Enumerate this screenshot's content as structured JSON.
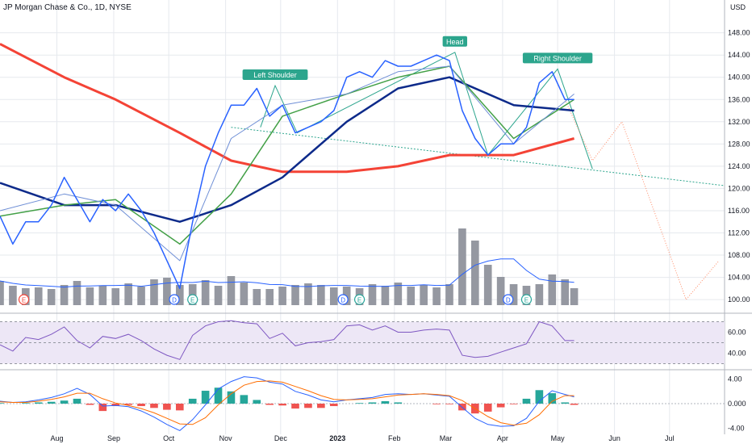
{
  "header": {
    "title": "JP Morgan Chase & Co., 1D, NYSE",
    "currency": "USD"
  },
  "colors": {
    "price": "#2962ff",
    "ma_fast": "#6f8fd6",
    "ma_mid": "#43a047",
    "ma_slow": "#0d2a8a",
    "ma_long": "#f44336",
    "volume": "#9598a1",
    "volume_avg": "#2962ff",
    "pattern_fill": "#2ca58d",
    "pattern_neckline": "#2ca58d",
    "projection": "#ff8a65",
    "rsi": "#7e57c2",
    "rsi_band": "#ede7f6",
    "macd": "#2962ff",
    "signal": "#ff6d00",
    "hist_pos": "#26a69a",
    "hist_neg": "#ef5350",
    "grid": "#e6e9ee"
  },
  "chart_data": [
    {
      "type": "line",
      "title": "JP Morgan Chase & Co., 1D, NYSE",
      "x_tick_labels": [
        "Aug",
        "Sep",
        "Oct",
        "Nov",
        "Dec",
        "2023",
        "Feb",
        "Mar",
        "Apr",
        "May",
        "Jun",
        "Jul"
      ],
      "y_tick_labels": [
        "148.00",
        "144.00",
        "140.00",
        "136.00",
        "132.00",
        "128.00",
        "124.00",
        "120.00",
        "116.00",
        "112.00",
        "108.00",
        "104.00",
        "100.00"
      ],
      "ylim": [
        99,
        151
      ],
      "annotations": [
        {
          "label": "Left Shoulder",
          "x": "2022-11-28",
          "y": 138.5
        },
        {
          "label": "Head",
          "x": "2023-03-06",
          "y": 144.5
        },
        {
          "label": "Right Shoulder",
          "x": "2023-05-01",
          "y": 141.5
        }
      ],
      "event_markers": [
        {
          "label": "E",
          "x": "2022-07-14"
        },
        {
          "label": "D",
          "x": "2022-10-04"
        },
        {
          "label": "E",
          "x": "2022-10-14"
        },
        {
          "label": "D",
          "x": "2023-01-04"
        },
        {
          "label": "E",
          "x": "2023-01-13"
        },
        {
          "label": "D",
          "x": "2023-04-04"
        },
        {
          "label": "E",
          "x": "2023-04-14"
        }
      ],
      "series": [
        {
          "x": [
            "2022-07-01",
            "2022-07-08",
            "2022-07-15",
            "2022-07-22",
            "2022-07-29",
            "2022-08-05",
            "2022-08-12",
            "2022-08-19",
            "2022-08-26",
            "2022-09-02",
            "2022-09-09",
            "2022-09-16",
            "2022-09-23",
            "2022-09-30",
            "2022-10-07",
            "2022-10-14",
            "2022-10-21",
            "2022-10-28",
            "2022-11-04",
            "2022-11-11",
            "2022-11-18",
            "2022-11-25",
            "2022-12-02",
            "2022-12-09",
            "2022-12-16",
            "2022-12-23",
            "2022-12-30",
            "2023-01-06",
            "2023-01-13",
            "2023-01-20",
            "2023-01-27",
            "2023-02-03",
            "2023-02-10",
            "2023-02-17",
            "2023-02-24",
            "2023-03-03",
            "2023-03-10",
            "2023-03-17",
            "2023-03-24",
            "2023-03-31",
            "2023-04-07",
            "2023-04-14",
            "2023-04-21",
            "2023-04-28",
            "2023-05-05",
            "2023-05-10"
          ],
          "values": [
            115,
            110,
            114,
            114,
            117,
            122,
            118,
            114,
            118,
            116,
            119,
            116,
            112,
            107,
            102,
            114,
            124,
            130,
            135,
            135,
            138,
            133,
            135,
            130,
            131,
            132,
            134,
            140,
            141,
            140,
            143,
            142,
            142,
            143,
            144,
            143,
            134,
            129,
            126,
            128,
            128,
            131,
            139,
            141,
            136,
            136
          ]
        },
        {
          "x": [
            "2022-07-01",
            "2022-08-05",
            "2022-09-02",
            "2022-10-07",
            "2022-11-04",
            "2022-12-02",
            "2023-01-06",
            "2023-02-03",
            "2023-03-03",
            "2023-04-07",
            "2023-05-10"
          ],
          "values": [
            116,
            119,
            117,
            107,
            129,
            135,
            137,
            141,
            142,
            128,
            137
          ]
        },
        {
          "x": [
            "2022-07-01",
            "2022-08-05",
            "2022-09-02",
            "2022-10-07",
            "2022-11-04",
            "2022-12-02",
            "2023-01-06",
            "2023-02-03",
            "2023-03-03",
            "2023-04-07",
            "2023-05-10"
          ],
          "values": [
            115,
            117,
            118,
            110,
            119,
            133,
            137,
            140,
            142,
            129,
            136
          ]
        },
        {
          "x": [
            "2022-07-01",
            "2022-08-05",
            "2022-09-02",
            "2022-10-07",
            "2022-11-04",
            "2022-12-02",
            "2023-01-06",
            "2023-02-03",
            "2023-03-03",
            "2023-04-07",
            "2023-05-10"
          ],
          "values": [
            121,
            117,
            117,
            114,
            117,
            122,
            132,
            138,
            140,
            135,
            134
          ]
        },
        {
          "x": [
            "2022-07-01",
            "2022-08-05",
            "2022-09-02",
            "2022-10-07",
            "2022-11-04",
            "2022-12-02",
            "2023-01-06",
            "2023-02-03",
            "2023-03-03",
            "2023-04-07",
            "2023-05-10"
          ],
          "values": [
            146,
            140,
            136,
            130,
            125,
            123,
            123,
            124,
            126,
            126,
            129
          ]
        }
      ],
      "volume_ylim": [
        0,
        12
      ],
      "volume": [
        3,
        2.4,
        2.1,
        2.2,
        2,
        2.5,
        3,
        2.2,
        2.4,
        2.1,
        2.7,
        2.3,
        3.2,
        3.4,
        2.5,
        2.6,
        3.1,
        2.4,
        3.6,
        2.8,
        2,
        2,
        2.3,
        2.5,
        2.7,
        2.5,
        2.2,
        2.3,
        2.1,
        2.6,
        2.4,
        2.8,
        2.3,
        2.5,
        2.2,
        2.6,
        9.5,
        8,
        5,
        3.5,
        2.6,
        2.4,
        2.6,
        3.8,
        3.2,
        2.1
      ],
      "projection_target": 100
    },
    {
      "type": "line",
      "name": "RSI",
      "y_tick_labels": [
        "60.00",
        "40.00"
      ],
      "ylim": [
        25,
        75
      ],
      "values": [
        48,
        42,
        55,
        53,
        58,
        65,
        52,
        45,
        56,
        54,
        58,
        52,
        44,
        38,
        34,
        57,
        66,
        70,
        71,
        69,
        68,
        54,
        59,
        47,
        50,
        51,
        53,
        66,
        67,
        62,
        66,
        60,
        60,
        62,
        63,
        62,
        38,
        36,
        37,
        41,
        45,
        49,
        70,
        66,
        52,
        52
      ]
    },
    {
      "type": "bar",
      "name": "MACD",
      "y_tick_labels": [
        "4.00",
        "0.000",
        "-4.00"
      ],
      "ylim": [
        -5,
        5
      ],
      "macd": [
        0.4,
        0.2,
        0.3,
        0.6,
        1,
        1.6,
        2.5,
        1.5,
        -0.4,
        -0.3,
        -0.5,
        -1.2,
        -2.2,
        -3.4,
        -4.4,
        -2.6,
        -0.2,
        2.4,
        3.6,
        4.4,
        4.2,
        3.5,
        3.2,
        2,
        1.4,
        0.6,
        0.3,
        0.6,
        0.8,
        1,
        1.5,
        1.6,
        1.5,
        1.6,
        1.4,
        1.2,
        -0.6,
        -2.4,
        -3.4,
        -3.7,
        -3.6,
        -2.4,
        0.4,
        2.1,
        1.5,
        1.1
      ],
      "signal": [
        0.3,
        0.2,
        0.2,
        0.4,
        0.7,
        1.1,
        1.7,
        1.7,
        0.8,
        0.1,
        -0.3,
        -0.8,
        -1.5,
        -2.4,
        -3.3,
        -3.4,
        -2.3,
        -0.2,
        1.6,
        3,
        3.6,
        3.7,
        3.5,
        2.8,
        2.1,
        1.3,
        0.7,
        0.6,
        0.7,
        0.8,
        1.1,
        1.4,
        1.5,
        1.6,
        1.5,
        1.3,
        0.5,
        -0.8,
        -2.1,
        -3.1,
        -3.5,
        -3.2,
        -1.8,
        0.4,
        1.3,
        1.3
      ]
    }
  ]
}
